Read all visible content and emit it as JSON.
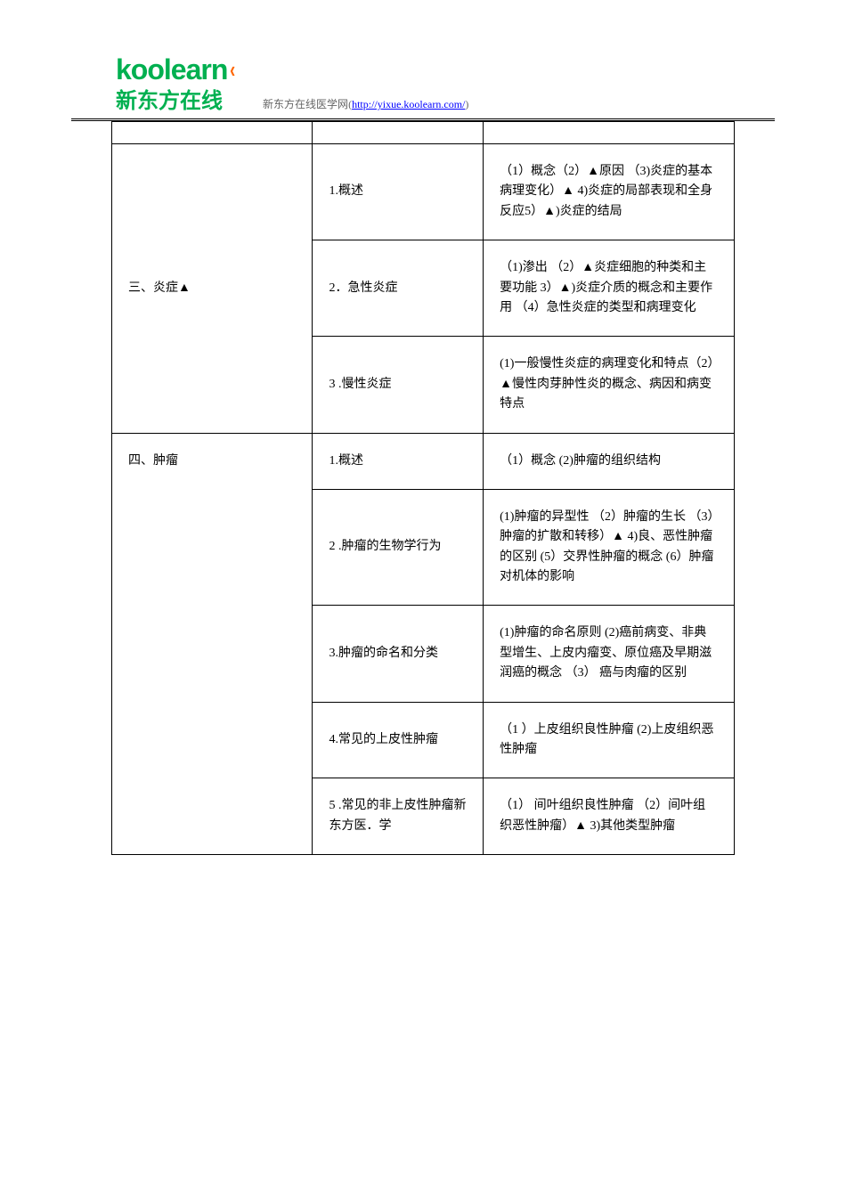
{
  "header": {
    "logo_top": "koolearn",
    "logo_bottom": "新东方在线",
    "site_text": "新东方在线医学网",
    "site_url": "http://yixue.koolearn.com/"
  },
  "table": {
    "empty_row": {
      "c1": "",
      "c2": "",
      "c3": ""
    },
    "section3": {
      "title": "三、炎症▲",
      "rows": [
        {
          "c2": "1.概述",
          "c3": "（1）概念（2）▲原因  （3)炎症的基本病理变化）▲ 4)炎症的局部表现和全身反应5）▲)炎症的结局"
        },
        {
          "c2": "2．急性炎症",
          "c3": "（1)渗出 （2）▲炎症细胞的种类和主要功能 3）▲)炎症介质的概念和主要作用  （4）急性炎症的类型和病理变化"
        },
        {
          "c2": "3 .慢性炎症",
          "c3": "(1)一般慢性炎症的病理变化和特点（2）▲慢性肉芽肿性炎的概念、病因和病变特点"
        }
      ]
    },
    "section4": {
      "title": "四、肿瘤",
      "rows": [
        {
          "c2": "1.概述",
          "c3": "（1）概念  (2)肿瘤的组织结构"
        },
        {
          "c2": "2 .肿瘤的生物学行为",
          "c3": "(1)肿瘤的异型性  （2）肿瘤的生长  （3）肿瘤的扩散和转移）▲ 4)良、恶性肿瘤的区别  (5）交界性肿瘤的概念  (6）肿瘤对机体的影响"
        },
        {
          "c2": "3.肿瘤的命名和分类",
          "c3": "(1)肿瘤的命名原则  (2)癌前病变、非典型增生、上皮内瘤变、原位癌及早期滋润癌的概念  （3） 癌与肉瘤的区别"
        },
        {
          "c2": "4.常见的上皮性肿瘤",
          "c3": "（1 ）上皮组织良性肿瘤  (2)上皮组织恶性肿瘤"
        },
        {
          "c2": "5 .常见的非上皮性肿瘤新东方医．学",
          "c3": "（1） 间叶组织良性肿瘤  （2）间叶组织恶性肿瘤）▲ 3)其他类型肿瘤"
        }
      ]
    }
  }
}
